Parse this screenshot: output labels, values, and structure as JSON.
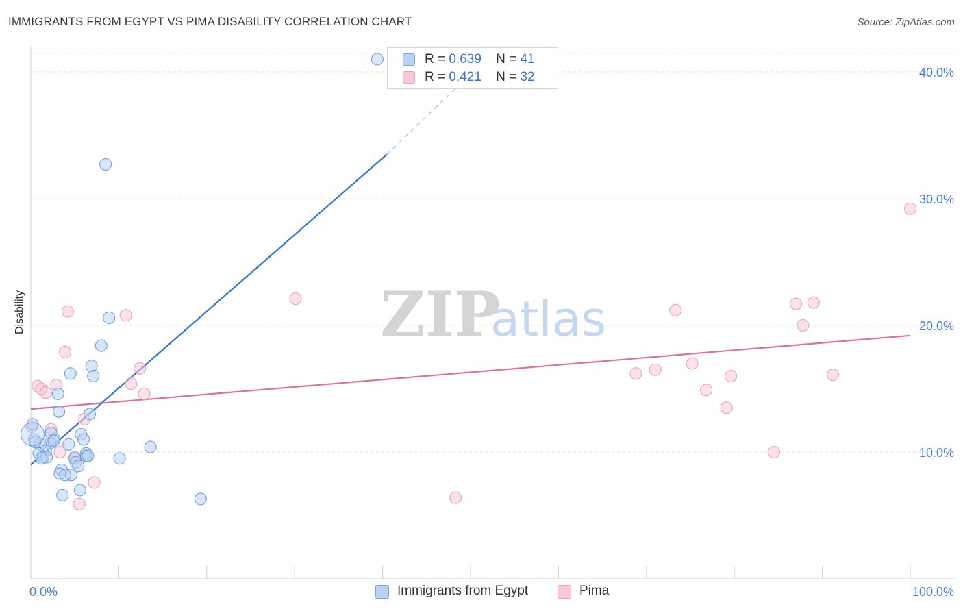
{
  "chart_data": {
    "type": "scatter",
    "title": "IMMIGRANTS FROM EGYPT VS PIMA DISABILITY CORRELATION CHART",
    "source": "Source: ZipAtlas.com",
    "ylabel": "Disability",
    "xlabel": "",
    "xlim": [
      0,
      100
    ],
    "ylim": [
      0,
      42
    ],
    "x_tick_labels": [
      "0.0%",
      "100.0%"
    ],
    "y_ticks": [
      10,
      20,
      30,
      40
    ],
    "y_tick_labels": [
      "10.0%",
      "20.0%",
      "30.0%",
      "40.0%"
    ],
    "grid": true,
    "legend_position": "top-center",
    "watermark": "ZIPatlas",
    "series": [
      {
        "name": "Immigrants from Egypt",
        "color": "#6fa0e0",
        "fill": "#b9d2f3",
        "R": "0.639",
        "N": "41",
        "trend": {
          "x0": 0,
          "y0": 9.0,
          "x1": 40.5,
          "y1": 33.5,
          "dash_x1": 51,
          "dash_y1": 40.5
        },
        "points": [
          [
            39.4,
            41.0
          ],
          [
            8.5,
            32.7
          ],
          [
            8.9,
            20.6
          ],
          [
            8.0,
            18.4
          ],
          [
            6.9,
            16.8
          ],
          [
            4.5,
            16.2
          ],
          [
            7.1,
            16.0
          ],
          [
            3.1,
            14.6
          ],
          [
            3.2,
            13.2
          ],
          [
            6.7,
            13.0
          ],
          [
            0.2,
            12.2
          ],
          [
            2.3,
            11.5
          ],
          [
            5.7,
            11.4
          ],
          [
            0.4,
            11.0
          ],
          [
            2.7,
            11.0
          ],
          [
            6.0,
            11.0
          ],
          [
            2.2,
            10.7
          ],
          [
            1.1,
            10.6
          ],
          [
            4.3,
            10.6
          ],
          [
            13.6,
            10.4
          ],
          [
            1.7,
            10.1
          ],
          [
            0.9,
            9.9
          ],
          [
            6.3,
            9.9
          ],
          [
            6.3,
            9.7
          ],
          [
            1.4,
            9.6
          ],
          [
            1.8,
            9.6
          ],
          [
            1.2,
            9.5
          ],
          [
            6.5,
            9.7
          ],
          [
            10.1,
            9.5
          ],
          [
            5.0,
            9.5
          ],
          [
            5.1,
            9.2
          ],
          [
            5.4,
            8.9
          ],
          [
            3.5,
            8.6
          ],
          [
            3.3,
            8.3
          ],
          [
            4.6,
            8.2
          ],
          [
            3.9,
            8.2
          ],
          [
            5.6,
            7.0
          ],
          [
            3.6,
            6.6
          ],
          [
            19.3,
            6.3
          ],
          [
            0.5,
            10.8
          ],
          [
            2.6,
            10.9
          ]
        ]
      },
      {
        "name": "Pima",
        "color": "#e8a3bb",
        "fill": "#f8c9d8",
        "R": "0.421",
        "N": "32",
        "trend": {
          "x0": 0,
          "y0": 13.4,
          "x1": 100,
          "y1": 19.2
        },
        "points": [
          [
            100.0,
            29.2
          ],
          [
            30.1,
            22.1
          ],
          [
            87.0,
            21.7
          ],
          [
            89.0,
            21.8
          ],
          [
            73.3,
            21.2
          ],
          [
            87.8,
            20.0
          ],
          [
            4.2,
            21.1
          ],
          [
            10.8,
            20.8
          ],
          [
            3.9,
            17.9
          ],
          [
            12.4,
            16.6
          ],
          [
            75.2,
            17.0
          ],
          [
            71.0,
            16.5
          ],
          [
            68.8,
            16.2
          ],
          [
            91.2,
            16.1
          ],
          [
            79.6,
            16.0
          ],
          [
            0.8,
            15.2
          ],
          [
            2.9,
            15.3
          ],
          [
            11.4,
            15.4
          ],
          [
            1.2,
            15.0
          ],
          [
            1.7,
            14.7
          ],
          [
            12.9,
            14.6
          ],
          [
            76.8,
            14.9
          ],
          [
            79.1,
            13.5
          ],
          [
            6.1,
            12.6
          ],
          [
            0.1,
            12.0
          ],
          [
            2.3,
            11.8
          ],
          [
            84.5,
            10.0
          ],
          [
            3.3,
            10.0
          ],
          [
            5.0,
            9.6
          ],
          [
            7.2,
            7.6
          ],
          [
            48.3,
            6.4
          ],
          [
            5.5,
            5.9
          ]
        ]
      }
    ]
  },
  "legend": {
    "r_label": "R =",
    "n_label": "N ="
  }
}
